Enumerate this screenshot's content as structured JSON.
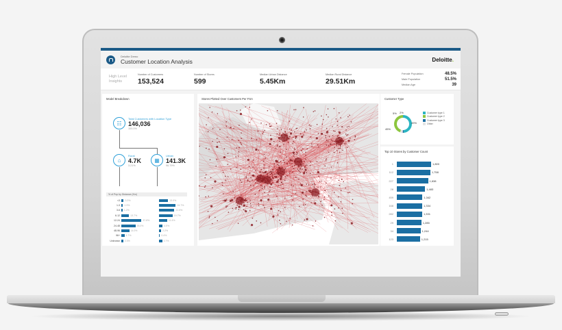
{
  "header": {
    "subtitle": "Deloitte Demo",
    "title": "Customer Location Analysis",
    "brand": "Deloitte",
    "brand_dot": "."
  },
  "kpis": {
    "section_label_line1": "High Level",
    "section_label_line2": "Insights",
    "items": [
      {
        "label": "Number of Customers",
        "value": "153,524"
      },
      {
        "label": "Number of Stores",
        "value": "599"
      },
      {
        "label": "Median Urban Distance",
        "value": "5.45Km"
      },
      {
        "label": "Median Rural Distance",
        "value": "29.51Km"
      }
    ],
    "demographics": [
      {
        "label": "Female Population",
        "value": "48.5%"
      },
      {
        "label": "Male Population",
        "value": "51.5%"
      },
      {
        "label": "Median Age",
        "value": "39"
      }
    ]
  },
  "model_breakdown": {
    "title": "Model Breakdown",
    "total": {
      "label": "Total Customers with Location Type",
      "value": "146,036",
      "pct": "100.0%",
      "icon": "customer-card-icon"
    },
    "rural": {
      "label": "Rural",
      "value": "4.7K",
      "pct": "3.21%",
      "icon": "house-icon"
    },
    "urban": {
      "label": "Urban",
      "value": "141.3K",
      "pct": "96.79%",
      "icon": "building-icon"
    },
    "distance_header": "% of Pop by Distance (Km)",
    "distance_bins": [
      "<3",
      "1-3",
      "3-6",
      "6-12",
      "12-24",
      "24-48",
      "48-96",
      "96+",
      "Unknown"
    ],
    "rural_pct": [
      3.3,
      1.9,
      1.2,
      13.7,
      37.8,
      26.0,
      14.0,
      4.7,
      2.3
    ],
    "rural_labels": [
      "3.3%",
      "1.9%",
      "1.2%",
      "13.7%",
      "37.8%",
      "26.0%",
      "14.0%",
      "4.7%",
      "2.3%"
    ],
    "urban_pct": [
      13.0,
      24.7,
      22.5,
      19.7,
      11.4,
      4.5,
      2.2,
      0.4,
      3.7
    ],
    "urban_labels": [
      "13.0%",
      "24.7%",
      "22.5%",
      "19.7%",
      "11.4%",
      "4.5%",
      "2.2%",
      "0.4%",
      "3.7%"
    ]
  },
  "map_panel": {
    "title": "Stores Plotted Over Customers Per FSA"
  },
  "customer_type": {
    "title": "Customer Type",
    "slices": [
      {
        "label": "Customer type 1",
        "pct": 49,
        "pct_label": "49%",
        "color": "#2bb5c2"
      },
      {
        "label": "Customer type 2",
        "pct": 45,
        "pct_label": "45%",
        "color": "#8dc63f"
      },
      {
        "label": "Customer type 3",
        "pct": 2,
        "pct_label": "2%",
        "color": "#1b6fa3"
      },
      {
        "label": "Other",
        "pct": 5,
        "pct_label": "5%",
        "color": "#e3e3e3"
      }
    ]
  },
  "top_stores": {
    "title": "Top 10 Stores by Customer Count",
    "stores": [
      "1",
      "112",
      "227",
      "28",
      "459",
      "168",
      "282",
      "29",
      "34",
      "123"
    ],
    "counts": [
      1800,
      1758,
      1638,
      1483,
      1342,
      1334,
      1331,
      1285,
      1244,
      1215
    ],
    "count_labels": [
      "1,800",
      "1,758",
      "1,638",
      "1,483",
      "1,342",
      "1,334",
      "1,331",
      "1,285",
      "1,244",
      "1,215"
    ]
  },
  "colors": {
    "accent": "#1b5a87",
    "bar": "#1b6fa3",
    "highlight": "#2c9fd8",
    "map_lines": "#d9464b",
    "map_points": "#8b1e23"
  }
}
